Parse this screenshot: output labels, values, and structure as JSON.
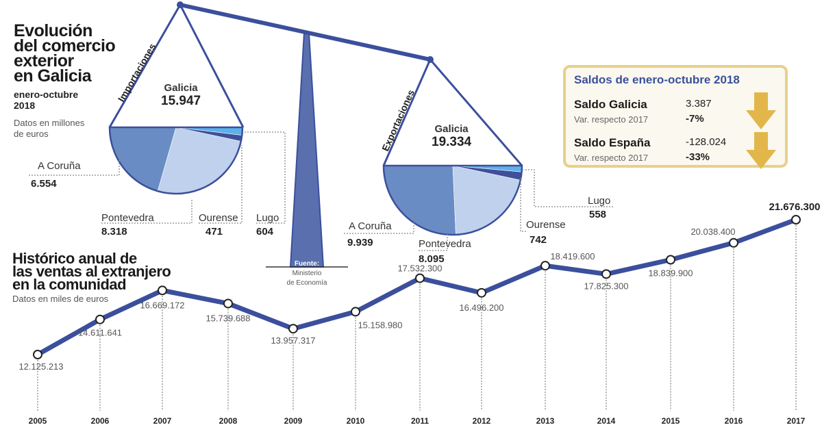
{
  "header": {
    "title_lines": [
      "Evolución",
      "del comercio",
      "exterior",
      "en Galicia"
    ],
    "period_lines": [
      "enero-octubre",
      "2018"
    ],
    "units_lines": [
      "Datos en millones",
      "de euros"
    ]
  },
  "source": {
    "label": "Fuente:",
    "lines": [
      "Ministerio",
      "de Economía"
    ]
  },
  "colors": {
    "main_blue": "#3b4f9c",
    "a_coruna": "#6a8cc4",
    "pontevedra": "#bfd1ec",
    "ourense": "#3f4f9a",
    "lugo": "#5eb0ea",
    "gold": "#e2b64a",
    "box_border": "#e8d08a"
  },
  "chart_data": [
    {
      "type": "pie",
      "title": "Importaciones",
      "total_label": "Galicia",
      "total": "15.947",
      "slices": [
        {
          "name": "A Coruña",
          "label": "6.554",
          "value": 6554
        },
        {
          "name": "Pontevedra",
          "label": "8.318",
          "value": 8318
        },
        {
          "name": "Ourense",
          "label": "471",
          "value": 471
        },
        {
          "name": "Lugo",
          "label": "604",
          "value": 604
        }
      ]
    },
    {
      "type": "pie",
      "title": "Exportaciones",
      "total_label": "Galicia",
      "total": "19.334",
      "slices": [
        {
          "name": "A Coruña",
          "label": "9.939",
          "value": 9939
        },
        {
          "name": "Pontevedra",
          "label": "8.095",
          "value": 8095
        },
        {
          "name": "Ourense",
          "label": "742",
          "value": 742
        },
        {
          "name": "Lugo",
          "label": "558",
          "value": 558
        }
      ]
    },
    {
      "type": "line",
      "title_lines": [
        "Histórico anual de",
        "las ventas al extranjero",
        "en la comunidad"
      ],
      "subtitle": "Datos en miles de euros",
      "categories": [
        "2005",
        "2006",
        "2007",
        "2008",
        "2009",
        "2010",
        "2011",
        "2012",
        "2013",
        "2014",
        "2015",
        "2016",
        "2017"
      ],
      "values": [
        12125213,
        14611641,
        16669172,
        15739688,
        13957317,
        15158980,
        17532300,
        16496200,
        18419600,
        17825300,
        18839900,
        20038400,
        21676300
      ],
      "labels": [
        "12.125.213",
        "14.611.641",
        "16.669.172",
        "15.739.688",
        "13.957.317",
        "15.158.980",
        "17.532.300",
        "16.496.200",
        "18.419.600",
        "17.825.300",
        "18.839.900",
        "20.038.400",
        "21.676.300"
      ],
      "grid": false
    }
  ],
  "saldos": {
    "title": "Saldos de enero-octubre 2018",
    "rows": [
      {
        "name": "Saldo Galicia",
        "value": "3.387",
        "var_label": "Var. respecto 2017",
        "var": "-7%",
        "trend": "down-arrow"
      },
      {
        "name": "Saldo España",
        "value": "-128.024",
        "var_label": "Var. respecto 2017",
        "var": "-33%",
        "trend": "down-arrow"
      }
    ]
  }
}
